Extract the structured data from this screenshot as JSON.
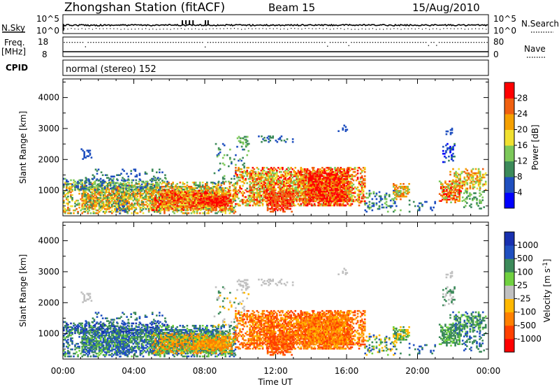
{
  "header": {
    "station": "Zhongshan Station (fitACF)",
    "beam": "Beam 15",
    "date": "15/Aug/2010"
  },
  "strip_panels": {
    "nsky_label": "N.Sky",
    "nsky_ticks": [
      "10^5",
      "10^0"
    ],
    "nsearch_label": "N.Search",
    "nsearch_ticks": [
      "10^5",
      "10^0"
    ],
    "freq_label": "Freq.",
    "freq_unit": "[MHz]",
    "freq_ticks": [
      "18",
      "8"
    ],
    "nave_label": "Nave",
    "nave_ticks": [
      "80",
      "0"
    ],
    "cpid_label": "CPID",
    "cpid_text": "normal (stereo) 152"
  },
  "colors": {
    "power_scale": [
      "#0000ff",
      "#1f4fbf",
      "#3c8a5a",
      "#7cc85a",
      "#f0e030",
      "#f5a000",
      "#f06010",
      "#ff0000"
    ],
    "velocity_scale": [
      "#ff0000",
      "#ff4000",
      "#ff8000",
      "#ffb800",
      "#c0c0c0",
      "#70d040",
      "#3c8a5a",
      "#2050c0",
      "#1830b0"
    ]
  },
  "chart_data": [
    {
      "type": "heatmap",
      "name": "power",
      "ylabel": "Slant Range [km]",
      "yticks": [
        "1000",
        "2000",
        "3000",
        "4000"
      ],
      "ylim": [
        180,
        4600
      ],
      "xlim": [
        0,
        24
      ],
      "colorbar_label": "Power [dB]",
      "colorbar_ticks": [
        "4",
        "8",
        "12",
        "16",
        "20",
        "24",
        "28"
      ],
      "colorbar_range": [
        0,
        32
      ]
    },
    {
      "type": "heatmap",
      "name": "velocity",
      "ylabel": "Slant Range [km]",
      "yticks": [
        "1000",
        "2000",
        "3000",
        "4000"
      ],
      "ylim": [
        180,
        4600
      ],
      "xlim": [
        0,
        24
      ],
      "xticks": [
        "00:00",
        "04:00",
        "08:00",
        "12:00",
        "16:00",
        "20:00",
        "00:00"
      ],
      "xlabel": "Time UT",
      "colorbar_label": "Velocity [m s-1]",
      "colorbar_label_parts": [
        "Velocity [m s",
        "-1",
        "]"
      ],
      "colorbar_ticks": [
        "1000",
        "500",
        "100",
        "25",
        "-25",
        "-100",
        "-500",
        "-1000"
      ]
    }
  ]
}
